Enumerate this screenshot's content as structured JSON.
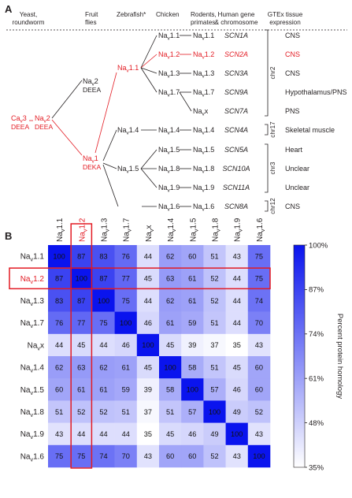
{
  "panel_a": {
    "label": "A",
    "headers": [
      [
        "Yeast,",
        "roundworm"
      ],
      [
        "Fruit",
        "flies"
      ],
      [
        "Zebrafish*"
      ],
      [
        "Chicken"
      ],
      [
        "Rodents,",
        "primates"
      ],
      [
        "Human gene",
        "& chromosome"
      ],
      [
        "GTEx tissue",
        "expression"
      ]
    ],
    "ancestor": {
      "cav_base": "Ca",
      "cav_sub": "v",
      "cav_num": "3",
      "cav_motif": "DEEA",
      "nav_base": "Na",
      "nav_sub": "v",
      "nav_num": "2",
      "nav_motif": "DEEA"
    },
    "fly_nodes": [
      {
        "base": "Na",
        "sub": "v",
        "num": "2",
        "motif": "DEEA",
        "red": false
      },
      {
        "base": "Na",
        "sub": "v",
        "num": "1",
        "motif": "DEKA",
        "red": true
      }
    ],
    "zebrafish_nodes": [
      {
        "base": "Na",
        "sub": "v",
        "num": "1.1",
        "red": true
      },
      {
        "base": "Na",
        "sub": "v",
        "num": "1.4",
        "red": false
      },
      {
        "base": "Na",
        "sub": "v",
        "num": "1.5",
        "red": false
      }
    ],
    "rows": [
      {
        "chicken": "1.1",
        "mammal": "1.1",
        "gene": "SCN1A",
        "tissue": "CNS",
        "red": false
      },
      {
        "chicken": "1.2",
        "mammal": "1.2",
        "gene": "SCN2A",
        "tissue": "CNS",
        "red": true
      },
      {
        "chicken": "1.3",
        "mammal": "1.3",
        "gene": "SCN3A",
        "tissue": "CNS",
        "red": false
      },
      {
        "chicken": "1.7",
        "mammal": "1.7",
        "gene": "SCN9A",
        "tissue": "Hypothalamus/PNS",
        "red": false
      },
      {
        "chicken": "",
        "mammal": "x",
        "gene": "SCN7A",
        "tissue": "PNS",
        "red": false
      },
      {
        "chicken": "1.4",
        "mammal": "1.4",
        "gene": "SCN4A",
        "tissue": "Skeletal muscle",
        "red": false
      },
      {
        "chicken": "1.5",
        "mammal": "1.5",
        "gene": "SCN5A",
        "tissue": "Heart",
        "red": false
      },
      {
        "chicken": "1.8",
        "mammal": "1.8",
        "gene": "SCN10A",
        "tissue": "Unclear",
        "red": false
      },
      {
        "chicken": "1.9",
        "mammal": "1.9",
        "gene": "SCN11A",
        "tissue": "Unclear",
        "red": false
      },
      {
        "chicken": "1.6",
        "mammal": "1.6",
        "gene": "SCN8A",
        "tissue": "CNS",
        "red": false
      }
    ],
    "chromosomes": [
      "chr2",
      "chr17",
      "chr3",
      "chr12"
    ]
  },
  "panel_b": {
    "label": "B",
    "labels": [
      "1.1",
      "1.2",
      "1.3",
      "1.7",
      "x",
      "1.4",
      "1.5",
      "1.8",
      "1.9",
      "1.6"
    ],
    "highlight_index": 1,
    "label_base": "Na",
    "label_sub": "v",
    "colorbar": {
      "ticks": [
        "100%",
        "87%",
        "74%",
        "61%",
        "48%",
        "35%"
      ],
      "title": "Percent protein homology",
      "min": 35,
      "max": 100,
      "low_color": "#ffffff",
      "high_color": "#0a14ee"
    },
    "colors": {
      "red": "#e31b23",
      "black": "#231f20"
    }
  },
  "chart_data": {
    "type": "heatmap",
    "title": "",
    "categories": [
      "Nav1.1",
      "Nav1.2",
      "Nav1.3",
      "Nav1.7",
      "Nax",
      "Nav1.4",
      "Nav1.5",
      "Nav1.8",
      "Nav1.9",
      "Nav1.6"
    ],
    "values": [
      [
        100,
        87,
        83,
        76,
        44,
        62,
        60,
        51,
        43,
        75
      ],
      [
        87,
        100,
        87,
        77,
        45,
        63,
        61,
        52,
        44,
        75
      ],
      [
        83,
        87,
        100,
        75,
        44,
        62,
        61,
        52,
        44,
        74
      ],
      [
        76,
        77,
        75,
        100,
        46,
        61,
        59,
        51,
        44,
        70
      ],
      [
        44,
        45,
        44,
        46,
        100,
        45,
        39,
        37,
        35,
        43
      ],
      [
        62,
        63,
        62,
        61,
        45,
        100,
        58,
        51,
        45,
        60
      ],
      [
        60,
        61,
        61,
        59,
        39,
        58,
        100,
        57,
        46,
        60
      ],
      [
        51,
        52,
        52,
        51,
        37,
        51,
        57,
        100,
        49,
        52
      ],
      [
        43,
        44,
        44,
        44,
        35,
        45,
        46,
        49,
        100,
        43
      ],
      [
        75,
        75,
        74,
        70,
        43,
        60,
        60,
        52,
        43,
        100
      ]
    ],
    "zlabel": "Percent protein homology",
    "zlim": [
      35,
      100
    ]
  }
}
